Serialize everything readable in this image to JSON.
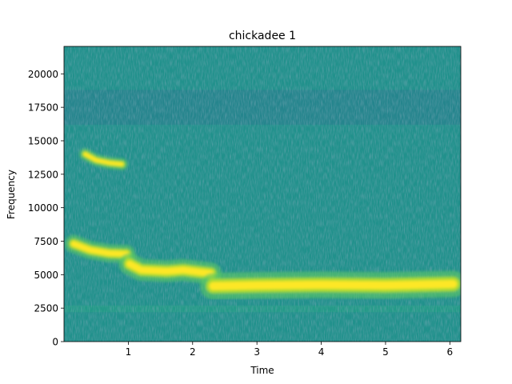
{
  "chart_data": {
    "type": "heatmap",
    "title": "chickadee 1",
    "xlabel": "Time",
    "ylabel": "Frequency",
    "xlim": [
      0,
      6.17
    ],
    "ylim": [
      0,
      22050
    ],
    "xticks": [
      1,
      2,
      3,
      4,
      5,
      6
    ],
    "yticks": [
      0,
      2500,
      5000,
      7500,
      10000,
      12500,
      15000,
      17500,
      20000
    ],
    "grid": false,
    "colormap": "viridis",
    "background_color": "#21918c",
    "features": [
      {
        "label": "harmonic",
        "points": [
          [
            0.33,
            14000
          ],
          [
            0.5,
            13550
          ],
          [
            0.7,
            13350
          ],
          [
            0.9,
            13250
          ]
        ],
        "thickness_hz": 500
      },
      {
        "label": "tone-1",
        "points": [
          [
            0.15,
            7300
          ],
          [
            0.4,
            6850
          ],
          [
            0.7,
            6600
          ],
          [
            0.97,
            6550
          ]
        ],
        "thickness_hz": 750
      },
      {
        "label": "tone-2",
        "points": [
          [
            1.02,
            5800
          ],
          [
            1.2,
            5350
          ],
          [
            1.6,
            5250
          ],
          [
            1.85,
            5350
          ],
          [
            2.1,
            5200
          ],
          [
            2.28,
            5100
          ]
        ],
        "thickness_hz": 900
      },
      {
        "label": "tone-3",
        "points": [
          [
            2.32,
            4150
          ],
          [
            3.0,
            4200
          ],
          [
            4.0,
            4250
          ],
          [
            5.0,
            4200
          ],
          [
            6.05,
            4300
          ]
        ],
        "thickness_hz": 1100
      }
    ],
    "bands": [
      {
        "label": "high-noise-band",
        "range_hz": [
          16200,
          18800
        ]
      },
      {
        "label": "low-noise-band",
        "range_hz": [
          2200,
          2700
        ]
      }
    ]
  }
}
